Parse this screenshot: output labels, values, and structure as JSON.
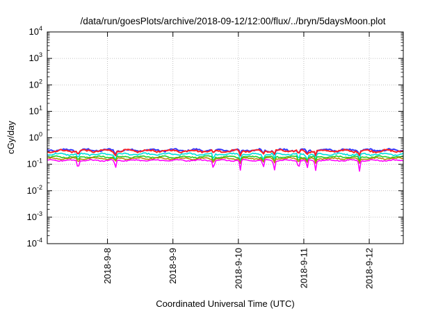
{
  "chart_data": {
    "type": "line",
    "title": "/data/run/goesPlots/archive/2018-09-12/12:00/flux/../bryn/5daysMoon.plot",
    "xlabel": "Coordinated Universal Time (UTC)",
    "ylabel": "cGy/day",
    "yscale": "log",
    "ylim_exp": [
      -4,
      4
    ],
    "y_ticks": [
      {
        "base": "10",
        "exp": "-4"
      },
      {
        "base": "10",
        "exp": "-3"
      },
      {
        "base": "10",
        "exp": "-2"
      },
      {
        "base": "10",
        "exp": "-1"
      },
      {
        "base": "10",
        "exp": "0"
      },
      {
        "base": "10",
        "exp": "1"
      },
      {
        "base": "10",
        "exp": "2"
      },
      {
        "base": "10",
        "exp": "3"
      },
      {
        "base": "10",
        "exp": "4"
      }
    ],
    "xlim_days": [
      7.08,
      12.52
    ],
    "x_ticks": [
      {
        "label": "2018-9-8",
        "day": 8
      },
      {
        "label": "2018-9-9",
        "day": 9
      },
      {
        "label": "2018-9-10",
        "day": 10
      },
      {
        "label": "2018-9-11",
        "day": 11
      },
      {
        "label": "2018-9-12",
        "day": 12
      }
    ],
    "grid": true,
    "series": [
      {
        "color": "#3333ff",
        "level": 0.34,
        "amp": 0.09,
        "dips": [
          7.55,
          8.12,
          9.62,
          10.03,
          10.38,
          10.55,
          10.92,
          11.05,
          11.18,
          11.85
        ],
        "dipdepth": 0.35
      },
      {
        "color": "#ff2222",
        "level": 0.32,
        "amp": 0.085,
        "dips": [
          7.55,
          8.12,
          9.62,
          10.03,
          10.38,
          10.55,
          10.92,
          11.05,
          11.18,
          11.85
        ],
        "dipdepth": 0.32
      },
      {
        "color": "#00dddd",
        "level": 0.24,
        "amp": 0.07,
        "dips": [
          7.55,
          8.12,
          9.62,
          10.03,
          10.38,
          10.55,
          10.92,
          11.05,
          11.18,
          11.85
        ],
        "dipdepth": 0.45
      },
      {
        "color": "#22cc22",
        "level": 0.19,
        "amp": 0.06,
        "dips": [
          7.55,
          8.12,
          9.62,
          10.03,
          10.38,
          10.55,
          10.92,
          11.05,
          11.18,
          11.85
        ],
        "dipdepth": 0.4
      },
      {
        "color": "#b8860b",
        "level": 0.165,
        "amp": 0.055,
        "dips": [
          7.55,
          8.12,
          9.62,
          10.03,
          10.38,
          10.55,
          10.92,
          11.05,
          11.18,
          11.85
        ],
        "dipdepth": 0.35
      },
      {
        "color": "#ff00ff",
        "level": 0.14,
        "amp": 0.05,
        "dips": [
          7.55,
          8.12,
          9.62,
          10.03,
          10.38,
          10.55,
          10.92,
          11.05,
          11.18,
          11.85
        ],
        "dipdepth": 0.6
      }
    ]
  }
}
